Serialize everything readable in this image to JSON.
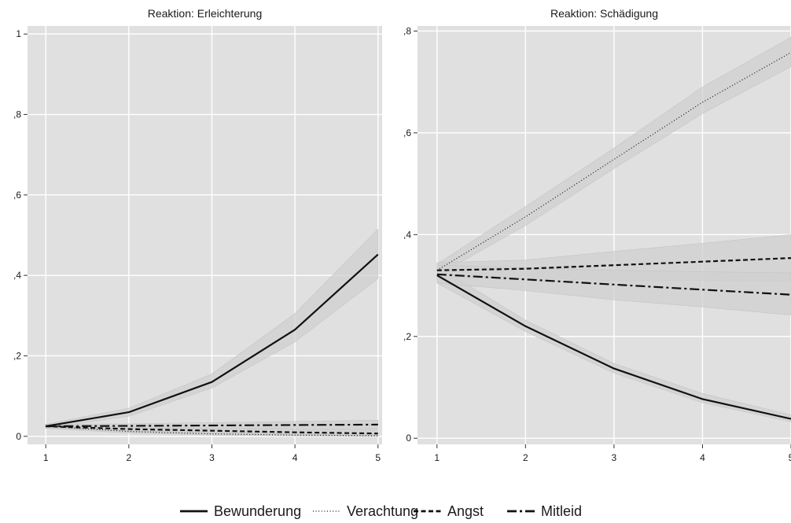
{
  "chart_data": [
    {
      "type": "line",
      "title": "Reaktion: Erleichterung",
      "xlabel": "",
      "ylabel": "",
      "x": [
        1,
        2,
        3,
        4,
        5
      ],
      "x_tick_labels": [
        "1",
        "2",
        "3",
        "4",
        "5"
      ],
      "xlim": [
        0.78,
        5.05
      ],
      "ylim": [
        -0.02,
        1.02
      ],
      "y_ticks": [
        0,
        0.2,
        0.4,
        0.6,
        0.8,
        1
      ],
      "y_tick_labels": [
        "0",
        ",2",
        ",4",
        ",6",
        ",8",
        "1"
      ],
      "grid": true,
      "series": [
        {
          "name": "Bewunderung",
          "style": "solid",
          "values": [
            0.025,
            0.06,
            0.135,
            0.265,
            0.452
          ],
          "lower": [
            0.02,
            0.05,
            0.12,
            0.235,
            0.392
          ],
          "upper": [
            0.03,
            0.07,
            0.155,
            0.305,
            0.515
          ]
        },
        {
          "name": "Verachtung",
          "style": "dotted",
          "values": [
            0.025,
            0.012,
            0.006,
            0.003,
            0.0015
          ],
          "lower": [
            0.02,
            0.008,
            0.003,
            0.001,
            0.0
          ],
          "upper": [
            0.03,
            0.017,
            0.011,
            0.007,
            0.005
          ]
        },
        {
          "name": "Angst",
          "style": "dashed",
          "values": [
            0.025,
            0.018,
            0.014,
            0.01,
            0.007
          ],
          "lower": [
            0.02,
            0.013,
            0.009,
            0.005,
            0.002
          ],
          "upper": [
            0.03,
            0.023,
            0.02,
            0.017,
            0.015
          ]
        },
        {
          "name": "Mitleid",
          "style": "dashdot",
          "values": [
            0.025,
            0.026,
            0.027,
            0.028,
            0.029
          ],
          "lower": [
            0.02,
            0.021,
            0.02,
            0.019,
            0.018
          ],
          "upper": [
            0.03,
            0.031,
            0.034,
            0.037,
            0.04
          ]
        }
      ]
    },
    {
      "type": "line",
      "title": "Reaktion: Schädigung",
      "xlabel": "",
      "ylabel": "",
      "x": [
        1,
        2,
        3,
        4,
        5
      ],
      "x_tick_labels": [
        "1",
        "2",
        "3",
        "4",
        "5"
      ],
      "xlim": [
        0.78,
        5.0
      ],
      "ylim": [
        -0.012,
        0.81
      ],
      "y_ticks": [
        0,
        0.2,
        0.4,
        0.6,
        0.8
      ],
      "y_tick_labels": [
        "0",
        ",2",
        ",4",
        ",6",
        ",8"
      ],
      "grid": true,
      "series": [
        {
          "name": "Bewunderung",
          "style": "solid",
          "values": [
            0.32,
            0.22,
            0.137,
            0.077,
            0.038
          ],
          "lower": [
            0.305,
            0.21,
            0.128,
            0.07,
            0.032
          ],
          "upper": [
            0.338,
            0.232,
            0.147,
            0.088,
            0.046
          ]
        },
        {
          "name": "Verachtung",
          "style": "dotted",
          "values": [
            0.33,
            0.435,
            0.548,
            0.66,
            0.758
          ],
          "lower": [
            0.32,
            0.418,
            0.53,
            0.638,
            0.73
          ],
          "upper": [
            0.342,
            0.455,
            0.57,
            0.69,
            0.788
          ]
        },
        {
          "name": "Angst",
          "style": "dashed",
          "values": [
            0.33,
            0.333,
            0.34,
            0.347,
            0.354
          ],
          "lower": [
            0.315,
            0.315,
            0.31,
            0.31,
            0.308
          ],
          "upper": [
            0.345,
            0.35,
            0.367,
            0.383,
            0.4
          ]
        },
        {
          "name": "Mitleid",
          "style": "dashdot",
          "values": [
            0.322,
            0.312,
            0.302,
            0.292,
            0.282
          ],
          "lower": [
            0.305,
            0.29,
            0.272,
            0.258,
            0.242
          ],
          "upper": [
            0.34,
            0.335,
            0.33,
            0.327,
            0.325
          ]
        }
      ]
    }
  ],
  "legend": {
    "placement": "bottom",
    "items": [
      {
        "name": "Bewunderung",
        "style": "solid"
      },
      {
        "name": "Verachtung",
        "style": "dotted"
      },
      {
        "name": "Angst",
        "style": "dashed"
      },
      {
        "name": "Mitleid",
        "style": "dashdot"
      }
    ]
  },
  "colors": {
    "panel_background": "#e0e0e0",
    "grid": "#ffffff",
    "band": "#d0d0d0",
    "line": "#111111"
  }
}
